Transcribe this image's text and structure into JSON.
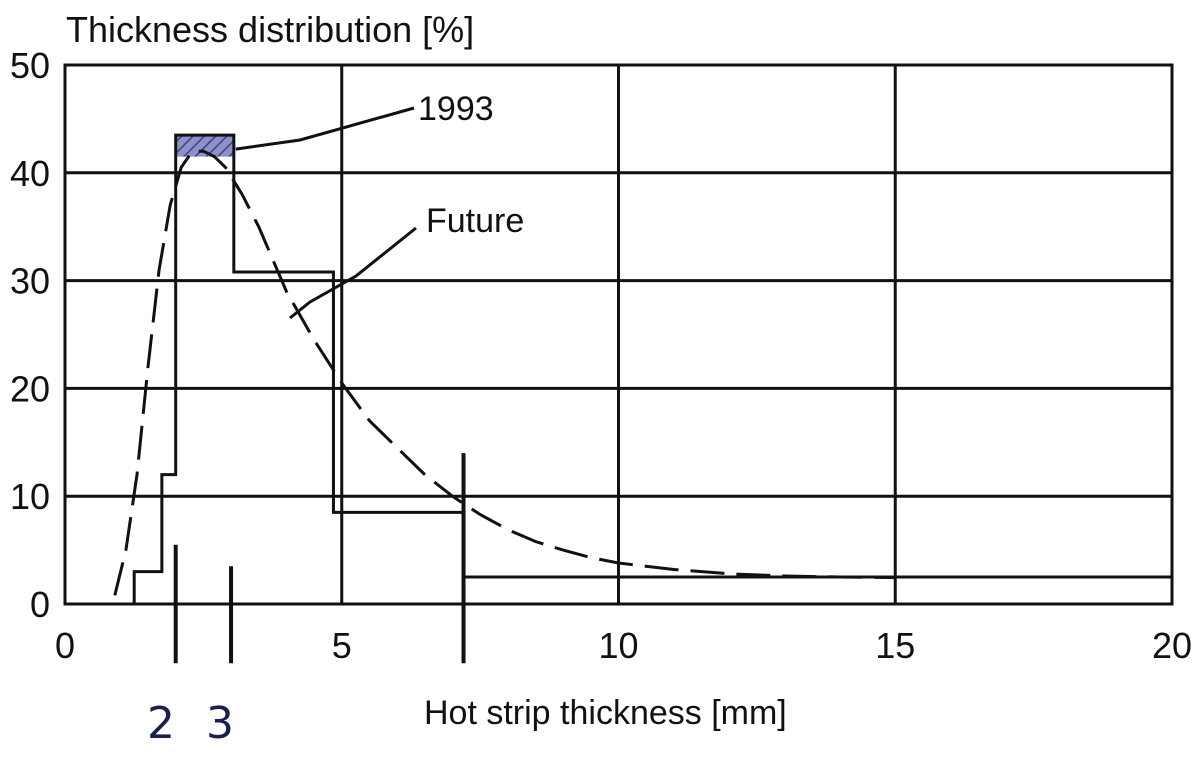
{
  "chart_data": {
    "type": "step-histogram",
    "title": "Thickness distribution [%]",
    "xlabel": "Hot strip thickness [mm]",
    "xlim": [
      0,
      20
    ],
    "ylim": [
      0,
      50
    ],
    "xticks": [
      "0",
      "5",
      "10",
      "15",
      "20"
    ],
    "yticks": [
      "0",
      "10",
      "20",
      "30",
      "40",
      "50"
    ],
    "grid": true,
    "series": [
      {
        "name": "1993",
        "kind": "step",
        "bins": [
          {
            "x0": 1.25,
            "x1": 1.75,
            "value": 3
          },
          {
            "x0": 1.75,
            "x1": 2.0,
            "value": 12
          },
          {
            "x0": 2.0,
            "x1": 3.05,
            "value": 43.5
          },
          {
            "x0": 3.05,
            "x1": 4.85,
            "value": 30.8
          },
          {
            "x0": 4.85,
            "x1": 7.2,
            "value": 8.5
          },
          {
            "x0": 7.2,
            "x1": 20.0,
            "value": 2.5
          }
        ]
      },
      {
        "name": "Future",
        "kind": "dashed-curve",
        "points": [
          [
            0.9,
            0.8
          ],
          [
            1.1,
            5
          ],
          [
            1.3,
            12
          ],
          [
            1.5,
            22
          ],
          [
            1.7,
            31
          ],
          [
            1.9,
            37
          ],
          [
            2.1,
            40.5
          ],
          [
            2.3,
            42
          ],
          [
            2.5,
            42
          ],
          [
            2.7,
            41.5
          ],
          [
            2.9,
            40.5
          ],
          [
            3.2,
            38
          ],
          [
            3.5,
            35
          ],
          [
            4.0,
            29
          ],
          [
            4.5,
            24.5
          ],
          [
            5.0,
            20.5
          ],
          [
            5.5,
            17
          ],
          [
            6.0,
            14.5
          ],
          [
            6.5,
            12
          ],
          [
            7.0,
            10
          ],
          [
            7.5,
            8.3
          ],
          [
            8.0,
            6.9
          ],
          [
            8.5,
            5.8
          ],
          [
            9.0,
            5.0
          ],
          [
            9.5,
            4.3
          ],
          [
            10.0,
            3.8
          ],
          [
            11.0,
            3.2
          ],
          [
            12.0,
            2.8
          ],
          [
            13.0,
            2.6
          ],
          [
            14.0,
            2.5
          ],
          [
            15.0,
            2.45
          ]
        ]
      }
    ],
    "annotations": [
      {
        "text": "1993"
      },
      {
        "text": "Future"
      }
    ],
    "handwritten_marks": [
      {
        "text": "2",
        "x": 2.0
      },
      {
        "text": "3",
        "x": 3.0
      }
    ],
    "vertical_markers": [
      {
        "x": 2.0,
        "ymin": -5.5,
        "ymax": 5.5
      },
      {
        "x": 3.0,
        "ymin": -5.5,
        "ymax": 3.5
      },
      {
        "x": 7.2,
        "ymin": -5.5,
        "ymax": 14
      }
    ],
    "hatched_region": {
      "x0": 2.0,
      "x1": 3.05,
      "y0": 41.5,
      "y1": 43.5,
      "color": "#5b5fa8"
    }
  }
}
